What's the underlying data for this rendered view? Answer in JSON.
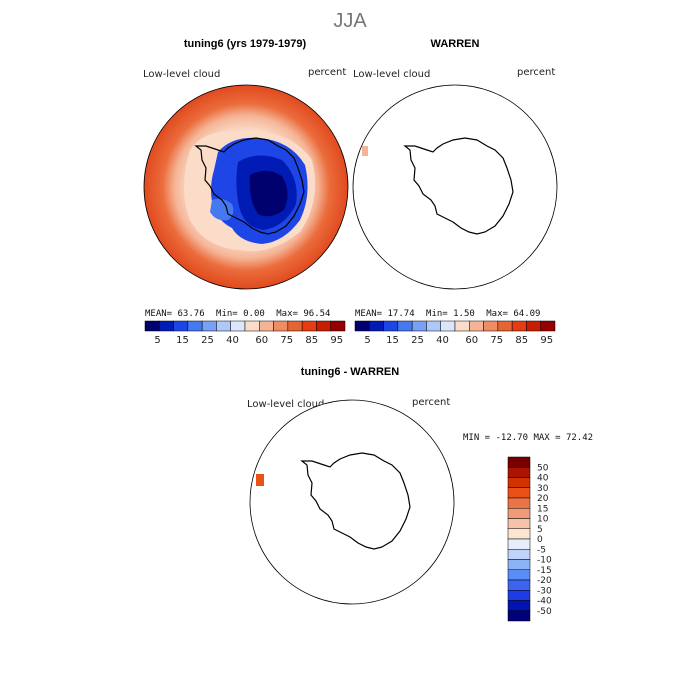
{
  "season": "JJA",
  "colors": {
    "seq": [
      "#00006e",
      "#001cb4",
      "#1e46e6",
      "#4678f0",
      "#78a0f5",
      "#afc8fa",
      "#dce6fa",
      "#fadcc8",
      "#f5b496",
      "#f08c64",
      "#e66432",
      "#e63c14",
      "#c81e00",
      "#960000"
    ],
    "diverging": [
      "#000078",
      "#0014b4",
      "#1e3ce6",
      "#3c64f0",
      "#5a8cf5",
      "#8cb4f5",
      "#bed2fa",
      "#e6eefa",
      "#fae6d2",
      "#f5c3aa",
      "#f09b78",
      "#eb7346",
      "#eb5014",
      "#d23200",
      "#aa1400",
      "#780000"
    ],
    "land_outline": "#000000"
  },
  "panels": {
    "left": {
      "title": "tuning6 (yrs 1979-1979)",
      "variable": "Low-level cloud",
      "units": "percent",
      "mean_label": "MEAN=",
      "mean": "63.76",
      "min_label": "Min=",
      "min": "0.00",
      "max_label": "Max=",
      "max": "96.54"
    },
    "right": {
      "title": "WARREN",
      "variable": "Low-level cloud",
      "units": "percent",
      "mean_label": "MEAN=",
      "mean": "17.74",
      "min_label": "Min=",
      "min": "1.50",
      "max_label": "Max=",
      "max": "64.09"
    },
    "diff": {
      "title": "tuning6 - WARREN",
      "variable": "Low-level cloud",
      "units": "percent",
      "minmax": "MIN = -12.70 MAX =  72.42"
    }
  },
  "colorbar_seq": {
    "tick_labels": [
      "5",
      "15",
      "25",
      "40",
      "60",
      "75",
      "85",
      "95"
    ]
  },
  "colorbar_diff": {
    "tick_labels": [
      "50",
      "40",
      "30",
      "20",
      "15",
      "10",
      "5",
      "0",
      "-5",
      "-10",
      "-15",
      "-20",
      "-30",
      "-40",
      "-50"
    ]
  }
}
